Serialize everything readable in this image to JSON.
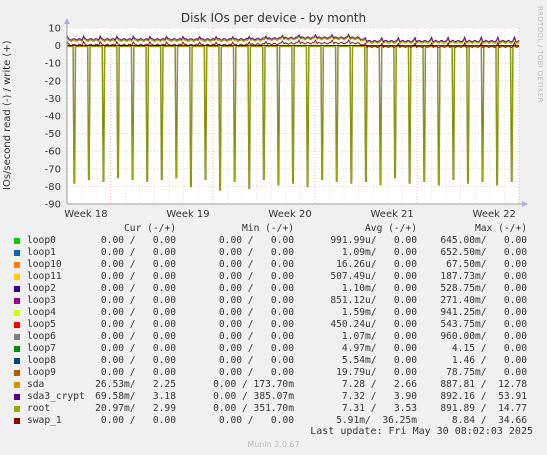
{
  "chart_data": {
    "type": "line",
    "title": "Disk IOs per device - by month",
    "ylabel": "IOs/second read (-) / write (+)",
    "xlabel": "",
    "ylim": [
      -90,
      10
    ],
    "yticks": [
      10,
      0,
      -10,
      -20,
      -30,
      -40,
      -50,
      -60,
      -70,
      -80,
      -90
    ],
    "xticks": [
      "Week 18",
      "Week 19",
      "Week 20",
      "Week 21",
      "Week 22"
    ],
    "grid": true,
    "legend_placement": "bottom",
    "series_colors": {
      "sda": "#cc9900",
      "sda3_crypt": "#550088",
      "root": "#99aa00",
      "swap_1": "#880000"
    },
    "read_spike_days": [
      0.5,
      1.5,
      2.5,
      3.5,
      4.5,
      5.5,
      6.5,
      7.5,
      8.5,
      9.5,
      10.5,
      11.5,
      12.5,
      13.5,
      14.5,
      15.5,
      16.5,
      17.5,
      18.5,
      19.5,
      20.5,
      21.5,
      22.5,
      23.5,
      24.5,
      25.5,
      26.5,
      27.5,
      28.5,
      29.5,
      30.5
    ],
    "read_spike_values": [
      -78,
      -76,
      -77,
      -75,
      -76,
      -77,
      -76,
      -75,
      -80,
      -76,
      -82,
      -77,
      -81,
      -76,
      -79,
      -78,
      -80,
      -76,
      -77,
      -78,
      -77,
      -79,
      -75,
      -78,
      -77,
      -79,
      -76,
      -78,
      -77,
      -79,
      -77
    ],
    "write_level_days": [
      0,
      12,
      16,
      20,
      20.5,
      31
    ],
    "write_level_values": [
      3,
      3,
      4,
      4,
      2,
      2
    ]
  },
  "legend": {
    "headers": {
      "cur": "Cur (-/+)",
      "min": "Min (-/+)",
      "avg": "Avg (-/+)",
      "max": "Max (-/+)"
    },
    "rows": [
      {
        "name": "loop0",
        "color": "#00cc00",
        "cur": "0.00 /   0.00",
        "min": "0.00 /   0.00",
        "avg": "991.99u/   0.00",
        "max": "645.00m/   0.00"
      },
      {
        "name": "loop1",
        "color": "#0066b3",
        "cur": "0.00 /   0.00",
        "min": "0.00 /   0.00",
        "avg": "1.09m/   0.00",
        "max": "652.50m/   0.00"
      },
      {
        "name": "loop10",
        "color": "#ff8000",
        "cur": "0.00 /   0.00",
        "min": "0.00 /   0.00",
        "avg": "16.26u/   0.00",
        "max": "67.50m/   0.00"
      },
      {
        "name": "loop11",
        "color": "#ffcc00",
        "cur": "0.00 /   0.00",
        "min": "0.00 /   0.00",
        "avg": "507.49u/   0.00",
        "max": "187.73m/   0.00"
      },
      {
        "name": "loop2",
        "color": "#330099",
        "cur": "0.00 /   0.00",
        "min": "0.00 /   0.00",
        "avg": "1.10m/   0.00",
        "max": "528.75m/   0.00"
      },
      {
        "name": "loop3",
        "color": "#990099",
        "cur": "0.00 /   0.00",
        "min": "0.00 /   0.00",
        "avg": "851.12u/   0.00",
        "max": "271.40m/   0.00"
      },
      {
        "name": "loop4",
        "color": "#ccff00",
        "cur": "0.00 /   0.00",
        "min": "0.00 /   0.00",
        "avg": "1.59m/   0.00",
        "max": "941.25m/   0.00"
      },
      {
        "name": "loop5",
        "color": "#ff0000",
        "cur": "0.00 /   0.00",
        "min": "0.00 /   0.00",
        "avg": "450.24u/   0.00",
        "max": "543.75m/   0.00"
      },
      {
        "name": "loop6",
        "color": "#808080",
        "cur": "0.00 /   0.00",
        "min": "0.00 /   0.00",
        "avg": "1.07m/   0.00",
        "max": "960.00m/   0.00"
      },
      {
        "name": "loop7",
        "color": "#008f00",
        "cur": "0.00 /   0.00",
        "min": "0.00 /   0.00",
        "avg": "4.97m/   0.00",
        "max": "4.15 /   0.00"
      },
      {
        "name": "loop8",
        "color": "#00487d",
        "cur": "0.00 /   0.00",
        "min": "0.00 /   0.00",
        "avg": "5.54m/   0.00",
        "max": "1.46 /   0.00"
      },
      {
        "name": "loop9",
        "color": "#b35a00",
        "cur": "0.00 /   0.00",
        "min": "0.00 /   0.00",
        "avg": "19.79u/   0.00",
        "max": "78.75m/   0.00"
      },
      {
        "name": "sda",
        "color": "#cc9900",
        "cur": "26.53m/   2.25",
        "min": "0.00 / 173.70m",
        "avg": "7.28 /   2.66",
        "max": "887.81 /  12.78"
      },
      {
        "name": "sda3_crypt",
        "color": "#550088",
        "cur": "69.58m/   3.18",
        "min": "0.00 / 385.07m",
        "avg": "7.32 /   3.90",
        "max": "892.16 /  53.91"
      },
      {
        "name": "root",
        "color": "#99aa00",
        "cur": "20.97m/   2.99",
        "min": "0.00 / 351.70m",
        "avg": "7.31 /   3.53",
        "max": "891.89 /  14.77"
      },
      {
        "name": "swap_1",
        "color": "#880000",
        "cur": "0.00 /   0.00",
        "min": "0.00 /   0.00",
        "avg": "5.91m/  36.25m",
        "max": "8.84 /  34.66"
      }
    ]
  },
  "last_update": "Last update: Fri May 30 08:02:03 2025",
  "version": "Munin 2.0.67",
  "side_credit": "RRDTOOL / TOBI OETIKER"
}
